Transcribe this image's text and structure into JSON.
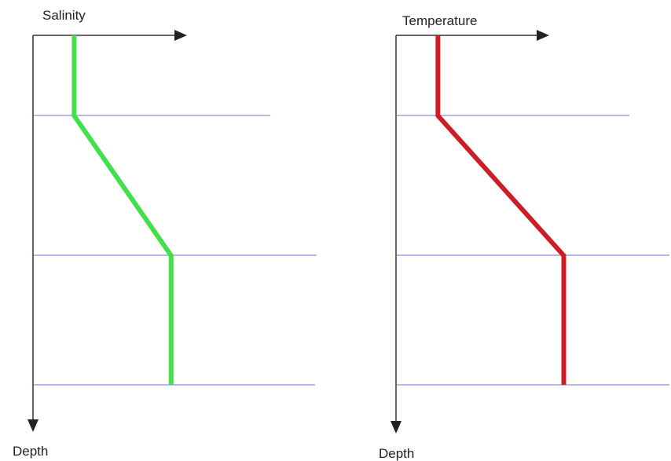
{
  "chart_data": [
    {
      "type": "line",
      "title": "",
      "xlabel": "Salinity",
      "ylabel": "Depth",
      "ticks": "none",
      "reference_lines_count": 3,
      "profile": [
        {
          "x": 0.2,
          "y": 0
        },
        {
          "x": 0.2,
          "y": 0.23
        },
        {
          "x": 0.68,
          "y": 0.63
        },
        {
          "x": 0.68,
          "y": 1.0
        }
      ],
      "colors": {
        "line": "#44e04c",
        "reference": "#8a8fd8",
        "axis": "#333333"
      }
    },
    {
      "type": "line",
      "title": "",
      "xlabel": "Temperature",
      "ylabel": "Depth",
      "ticks": "none",
      "reference_lines_count": 3,
      "profile": [
        {
          "x": 0.17,
          "y": 0
        },
        {
          "x": 0.17,
          "y": 0.23
        },
        {
          "x": 0.69,
          "y": 0.63
        },
        {
          "x": 0.69,
          "y": 1.0
        }
      ],
      "colors": {
        "line": "#cc1e26",
        "reference": "#8a8fd8",
        "axis": "#333333"
      }
    }
  ]
}
